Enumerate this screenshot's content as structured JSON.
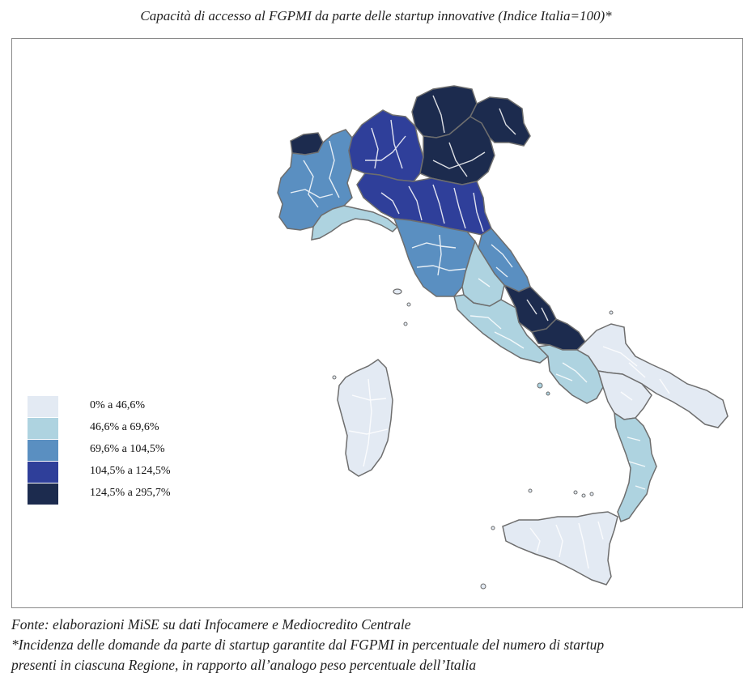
{
  "title": "Capacità di accesso al FGPMI da parte delle startup innovative (Indice Italia=100)*",
  "colors": {
    "class_1": "#e3eaf3",
    "class_2": "#aed3e0",
    "class_3": "#5a8fc1",
    "class_4": "#2f3f9a",
    "class_5": "#1c2b4e",
    "outline": "#6e6e6e",
    "inner_border": "#ffffff"
  },
  "legend": {
    "items": [
      {
        "label": "0%  a 46,6%",
        "color": "#e3eaf3"
      },
      {
        "label": "46,6% a 69,6%",
        "color": "#aed3e0"
      },
      {
        "label": "69,6% a 104,5%",
        "color": "#5a8fc1"
      },
      {
        "label": "104,5% a 124,5%",
        "color": "#2f3f9a"
      },
      {
        "label": "124,5% a 295,7%",
        "color": "#1c2b4e"
      }
    ]
  },
  "notes": {
    "source": "Fonte: elaborazioni MiSE su dati Infocamere e Mediocredito Centrale",
    "footnote_line1": "*Incidenza delle domande da parte di startup garantite dal FGPMI in percentuale del numero di startup",
    "footnote_line2": "presenti in ciascuna Regione, in rapporto all’analogo peso percentuale dell’Italia"
  }
}
